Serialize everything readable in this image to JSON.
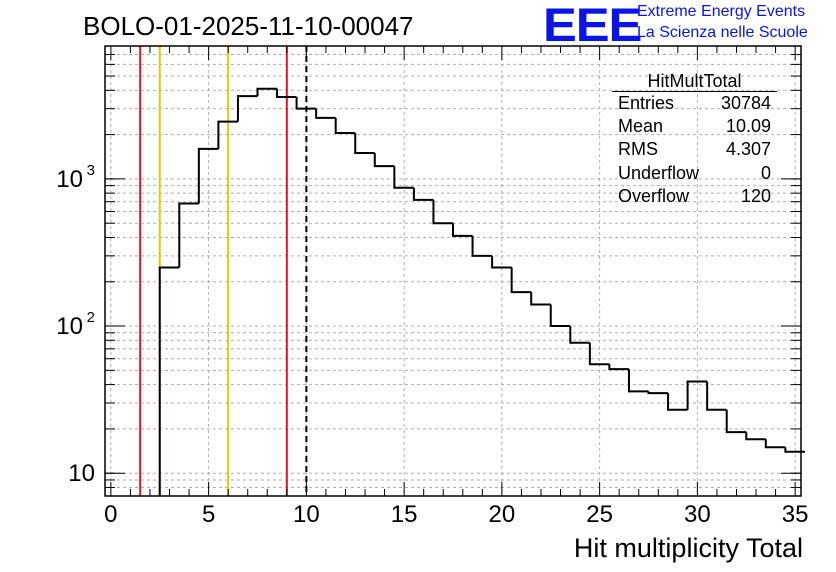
{
  "title": "BOLO-01-2025-11-10-00047",
  "logo": {
    "mark": "EEE",
    "line1": "Extreme Energy Events",
    "line2": "La Scienza nelle Scuole",
    "color": "#0a14e6"
  },
  "stats": {
    "name": "HitMultTotal",
    "rows": [
      {
        "label": "Entries",
        "value": "30784"
      },
      {
        "label": "Mean",
        "value": "10.09"
      },
      {
        "label": "RMS",
        "value": "4.307"
      },
      {
        "label": "Underflow",
        "value": "0"
      },
      {
        "label": "Overflow",
        "value": "120"
      }
    ]
  },
  "chart_data": {
    "type": "bar",
    "histogram": true,
    "xlabel": "Hit multiplicity Total",
    "ylabel": "",
    "xlim": [
      0,
      35
    ],
    "ylog": true,
    "ylim": [
      7,
      8000
    ],
    "bin_width": 1,
    "bin_edges_start": 2.5,
    "values": [
      250,
      680,
      1600,
      2450,
      3650,
      4100,
      3600,
      3000,
      2600,
      2050,
      1500,
      1220,
      870,
      720,
      500,
      410,
      300,
      250,
      170,
      140,
      100,
      77,
      55,
      51,
      36,
      35,
      27,
      42,
      27,
      19,
      17,
      15,
      14
    ],
    "xticks": [
      0,
      5,
      10,
      15,
      20,
      25,
      30,
      35
    ],
    "yticks": [
      {
        "value": 10,
        "label": "10"
      },
      {
        "value": 100,
        "label": "10",
        "exp": "2"
      },
      {
        "value": 1000,
        "label": "10",
        "exp": "3"
      }
    ],
    "vlines": [
      {
        "x": 1.5,
        "color": "#e8141c",
        "style": "solid"
      },
      {
        "x": 2.5,
        "color": "#f2c200",
        "style": "solid"
      },
      {
        "x": 6,
        "color": "#f2c200",
        "style": "solid"
      },
      {
        "x": 9,
        "color": "#e8141c",
        "style": "solid"
      },
      {
        "x": 10,
        "color": "#000000",
        "style": "dashed"
      }
    ],
    "grid": true
  }
}
